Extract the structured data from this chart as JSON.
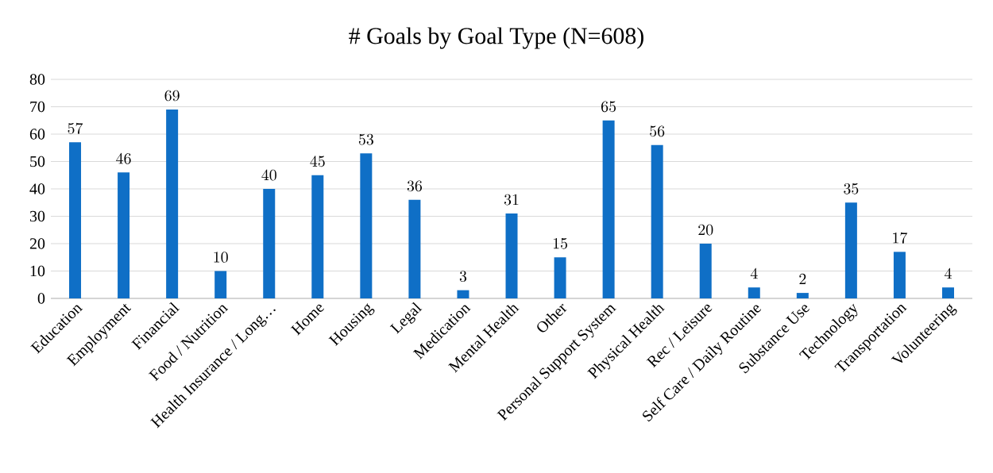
{
  "chart_data": {
    "type": "bar",
    "title": "# Goals by Goal Type (N=608)",
    "categories": [
      "Education",
      "Employment",
      "Financial",
      "Food / Nutrition",
      "Health Insurance / Long…",
      "Home",
      "Housing",
      "Legal",
      "Medication",
      "Mental Health",
      "Other",
      "Personal Support System",
      "Physical Health",
      "Rec / Leisure",
      "Self Care / Daily Routine",
      "Substance Use",
      "Technology",
      "Transportation",
      "Volunteering"
    ],
    "values": [
      57,
      46,
      69,
      10,
      40,
      45,
      53,
      36,
      3,
      31,
      15,
      65,
      56,
      20,
      4,
      2,
      35,
      17,
      4
    ],
    "color": "#0f6fc6",
    "ylim": [
      0,
      80
    ],
    "yticks": [
      0,
      10,
      20,
      30,
      40,
      50,
      60,
      70,
      80
    ],
    "grid": "y",
    "data_labels": true
  }
}
